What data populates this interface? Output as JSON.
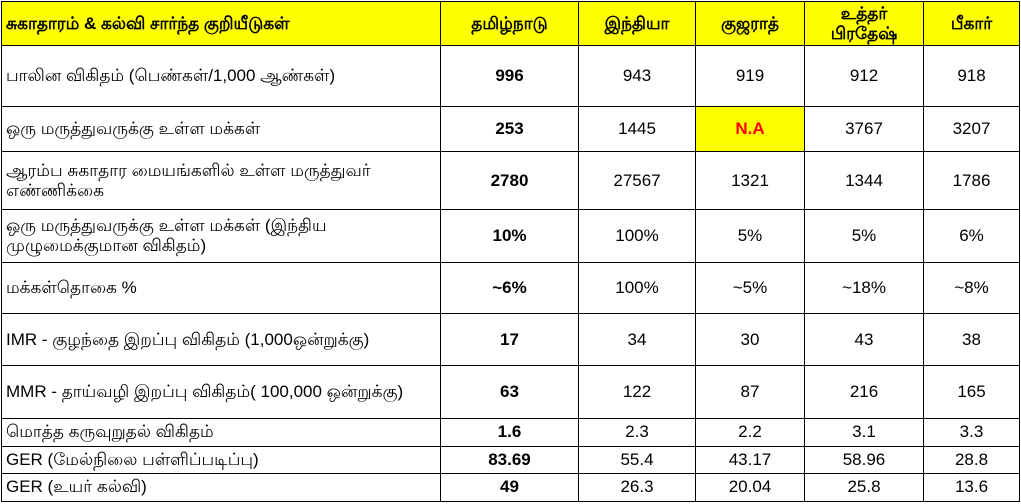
{
  "header": {
    "indicator": "சுகாதாரம் & கல்வி சார்ந்த குறியீடுகள்",
    "tamilnadu": "தமிழ்நாடு",
    "india": "இந்தியா",
    "gujarat": "குஜராத்",
    "uttar_pradesh": "உத்தர் பிரதேஷ்",
    "bihar": "பீகார்"
  },
  "rows": [
    {
      "label": "பாலின விகிதம் (பெண்கள்/1,000 ஆண்கள்)",
      "tamilnadu": "996",
      "india": "943",
      "gujarat": "919",
      "uttar_pradesh": "912",
      "bihar": "918"
    },
    {
      "label": "ஒரு மருத்துவருக்கு உள்ள மக்கள்",
      "tamilnadu": "253",
      "india": "1445",
      "gujarat": "N.A",
      "uttar_pradesh": "3767",
      "bihar": "3207"
    },
    {
      "label": "ஆரம்ப சுகாதார மையங்களில் உள்ள மருத்துவர் எண்ணிக்கை",
      "tamilnadu": "2780",
      "india": "27567",
      "gujarat": "1321",
      "uttar_pradesh": "1344",
      "bihar": "1786"
    },
    {
      "label": "ஒரு மருத்துவருக்கு உள்ள மக்கள் (இந்திய முழுமைக்குமான விகிதம்)",
      "tamilnadu": "10%",
      "india": "100%",
      "gujarat": "5%",
      "uttar_pradesh": "5%",
      "bihar": "6%"
    },
    {
      "label": "மக்கள்தொகை %",
      "tamilnadu": "~6%",
      "india": "100%",
      "gujarat": "~5%",
      "uttar_pradesh": "~18%",
      "bihar": "~8%"
    },
    {
      "label": "IMR - குழந்தை இறப்பு விகிதம் (1,000ஒன்றுக்கு)",
      "tamilnadu": "17",
      "india": "34",
      "gujarat": "30",
      "uttar_pradesh": "43",
      "bihar": "38"
    },
    {
      "label": "MMR - தாய்வழி இறப்பு விகிதம்( 100,000 ஒன்றுக்கு)",
      "tamilnadu": "63",
      "india": "122",
      "gujarat": "87",
      "uttar_pradesh": "216",
      "bihar": "165"
    },
    {
      "label": "மொத்த கருவுறுதல் விகிதம்",
      "tamilnadu": "1.6",
      "india": "2.3",
      "gujarat": "2.2",
      "uttar_pradesh": "3.1",
      "bihar": "3.3"
    },
    {
      "label": "GER (மேல்நிலை பள்ளிப்படிப்பு)",
      "tamilnadu": "83.69",
      "india": "55.4",
      "gujarat": "43.17",
      "uttar_pradesh": "58.96",
      "bihar": "28.8"
    },
    {
      "label": "GER (உயர் கல்வி)",
      "tamilnadu": "49",
      "india": "26.3",
      "gujarat": "20.04",
      "uttar_pradesh": "25.8",
      "bihar": "13.6"
    }
  ],
  "colors": {
    "header_background": "#ffff00",
    "na_background": "#ffff00",
    "na_text": "#ff0000",
    "border": "#000000"
  }
}
